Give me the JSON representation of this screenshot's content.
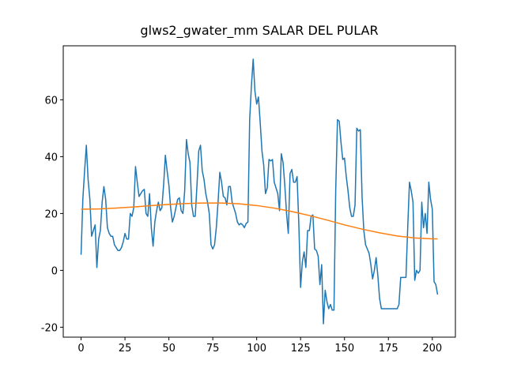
{
  "chart_data": {
    "type": "line",
    "title": "glws2_gwater_mm SALAR DEL PULAR",
    "xlim": [
      -10.15,
      213.15
    ],
    "ylim": [
      -23.5,
      79.0
    ],
    "xticks": [
      0,
      25,
      50,
      75,
      100,
      125,
      150,
      175,
      200
    ],
    "yticks": [
      -20,
      0,
      20,
      40,
      60
    ],
    "series": [
      {
        "color": "#1f77b4",
        "x": [
          0,
          1,
          2,
          3,
          4,
          5,
          6,
          7,
          8,
          9,
          10,
          11,
          12,
          13,
          14,
          15,
          16,
          17,
          18,
          19,
          20,
          21,
          22,
          23,
          24,
          25,
          26,
          27,
          28,
          29,
          30,
          31,
          32,
          33,
          34,
          35,
          36,
          37,
          38,
          39,
          40,
          41,
          42,
          43,
          44,
          45,
          46,
          47,
          48,
          49,
          50,
          51,
          52,
          53,
          54,
          55,
          56,
          57,
          58,
          59,
          60,
          61,
          62,
          63,
          64,
          65,
          66,
          67,
          68,
          69,
          70,
          71,
          72,
          73,
          74,
          75,
          76,
          77,
          78,
          79,
          80,
          81,
          82,
          83,
          84,
          85,
          86,
          87,
          88,
          89,
          90,
          91,
          92,
          93,
          94,
          95,
          96,
          97,
          98,
          99,
          100,
          101,
          102,
          103,
          104,
          105,
          106,
          107,
          108,
          109,
          110,
          111,
          112,
          113,
          114,
          115,
          116,
          117,
          118,
          119,
          120,
          121,
          122,
          123,
          124,
          125,
          126,
          127,
          128,
          129,
          130,
          131,
          132,
          133,
          134,
          135,
          136,
          137,
          138,
          139,
          140,
          141,
          142,
          143,
          144,
          145,
          146,
          147,
          148,
          149,
          150,
          151,
          152,
          153,
          154,
          155,
          156,
          157,
          158,
          159,
          160,
          161,
          162,
          163,
          164,
          165,
          166,
          167,
          168,
          169,
          170,
          171,
          172,
          173,
          174,
          175,
          176,
          177,
          178,
          179,
          180,
          181,
          182,
          183,
          184,
          185,
          186,
          187,
          188,
          189,
          190,
          191,
          192,
          193,
          194,
          195,
          196,
          197,
          198,
          199,
          200,
          201,
          202,
          203
        ],
        "values": [
          5.5,
          25,
          35,
          44,
          32,
          25,
          12,
          14,
          16,
          1,
          11,
          14,
          24,
          29.5,
          25,
          15,
          13,
          12,
          12,
          9,
          8,
          7,
          7,
          8,
          10,
          13,
          11,
          11,
          20,
          19,
          22,
          36.5,
          31,
          26,
          27,
          28,
          28.5,
          20,
          19,
          27,
          15,
          8.5,
          17,
          21,
          24,
          21,
          22,
          30,
          40.5,
          35,
          30,
          22,
          17,
          19,
          22,
          25,
          25.5,
          21,
          20,
          28,
          46,
          41,
          38,
          23,
          19,
          19,
          30,
          42,
          44,
          35,
          32,
          27,
          24,
          20,
          9,
          7.5,
          9,
          15,
          24,
          34.5,
          31,
          26,
          25.5,
          23,
          29.5,
          29.5,
          24,
          22,
          20,
          17,
          16,
          16.5,
          16,
          15,
          16.5,
          17,
          53,
          65,
          74.3,
          63,
          58.5,
          61,
          52,
          42,
          37,
          27,
          29,
          39,
          38.5,
          39,
          31,
          29,
          27,
          21,
          41,
          38,
          30,
          20,
          13,
          34,
          35.5,
          31,
          31,
          33,
          16,
          -6,
          3,
          6.5,
          1,
          14,
          14,
          19,
          19.5,
          7.5,
          7,
          5,
          -5,
          2,
          -18.8,
          -7,
          -11,
          -13.5,
          -12,
          -14,
          -14,
          28,
          53,
          52.5,
          45,
          39,
          39.5,
          33,
          28,
          22,
          19,
          19,
          23,
          50,
          49,
          49.5,
          26,
          14,
          9,
          7.5,
          6,
          2,
          -3,
          0,
          4.5,
          -2,
          -10,
          -13.5,
          -13.5,
          -13.5,
          -13.5,
          -13.5,
          -13.5,
          -13.5,
          -13.5,
          -13.5,
          -13.5,
          -12,
          -2.5,
          -2.5,
          -2.5,
          -2.5,
          15,
          31,
          28,
          24,
          -3.5,
          0,
          -1,
          0,
          24,
          15,
          20,
          13,
          31,
          25,
          21.5,
          -4,
          -5,
          -8.5
        ]
      },
      {
        "color": "#ff7f0e",
        "x": [
          0,
          10,
          20,
          30,
          40,
          50,
          60,
          70,
          80,
          90,
          100,
          110,
          120,
          130,
          140,
          150,
          160,
          170,
          180,
          190,
          200,
          203
        ],
        "values": [
          21.5,
          21.6,
          21.9,
          22.3,
          22.8,
          23.2,
          23.5,
          23.7,
          23.7,
          23.4,
          22.8,
          21.9,
          20.7,
          19.3,
          17.7,
          16,
          14.5,
          13.2,
          12.1,
          11.4,
          11.1,
          11.1
        ]
      }
    ]
  }
}
